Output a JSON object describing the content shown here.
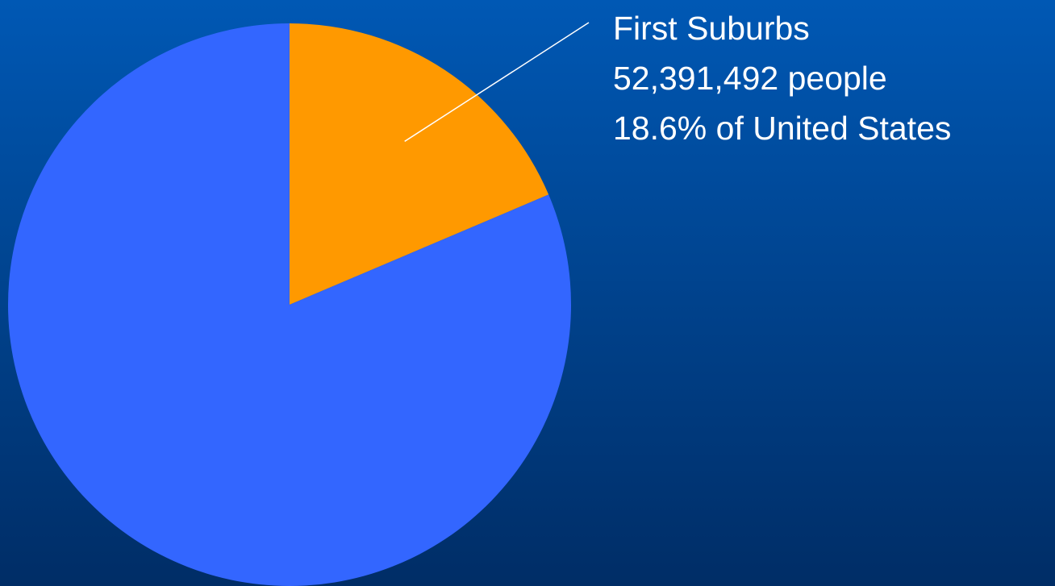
{
  "chart_data": {
    "type": "pie",
    "categories": [
      "First Suburbs",
      null
    ],
    "values": [
      18.6,
      81.4
    ],
    "value_labels": [
      "18.6% of United States",
      null
    ],
    "annotations": [
      "52,391,492 people"
    ],
    "colors": [
      "#ff9900",
      "#3366ff"
    ],
    "start_angle": 0,
    "direction": "clockwise"
  }
}
